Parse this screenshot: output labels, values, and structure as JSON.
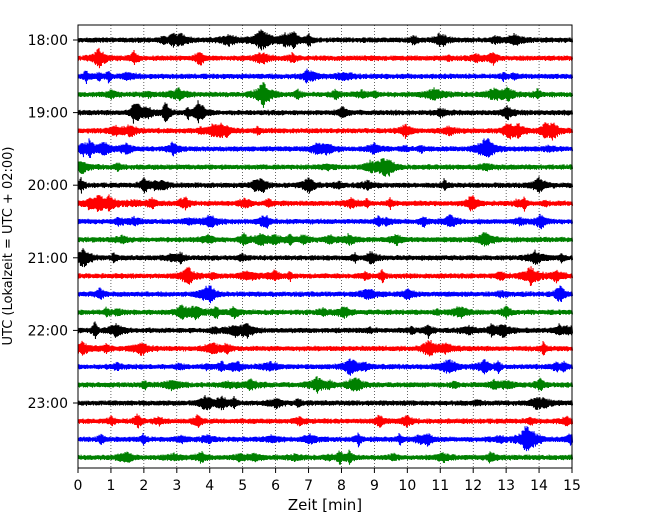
{
  "chart_data": {
    "type": "line",
    "title": "",
    "xlabel": "Zeit  [min]",
    "ylabel": "UTC (Lokalzeit = UTC + 02:00)",
    "xlim": [
      0,
      15
    ],
    "x_ticks": [
      "0",
      "1",
      "2",
      "3",
      "4",
      "5",
      "6",
      "7",
      "8",
      "9",
      "10",
      "11",
      "12",
      "13",
      "14",
      "15"
    ],
    "y_ticks": [
      "18:00",
      "19:00",
      "20:00",
      "21:00",
      "22:00",
      "23:00"
    ],
    "grid": "vertical dotted lines at each minute",
    "trace_colors": [
      "#000000",
      "#ff0000",
      "#0000ff",
      "#008000"
    ],
    "row_start_times": [
      "18:00",
      "18:15",
      "18:30",
      "18:45",
      "19:00",
      "19:15",
      "19:30",
      "19:45",
      "20:00",
      "20:15",
      "20:30",
      "20:45",
      "21:00",
      "21:15",
      "21:30",
      "21:45",
      "22:00",
      "22:15",
      "22:30",
      "22:45",
      "23:00",
      "23:15",
      "23:30",
      "23:45"
    ],
    "row_interval_minutes": 15
  }
}
